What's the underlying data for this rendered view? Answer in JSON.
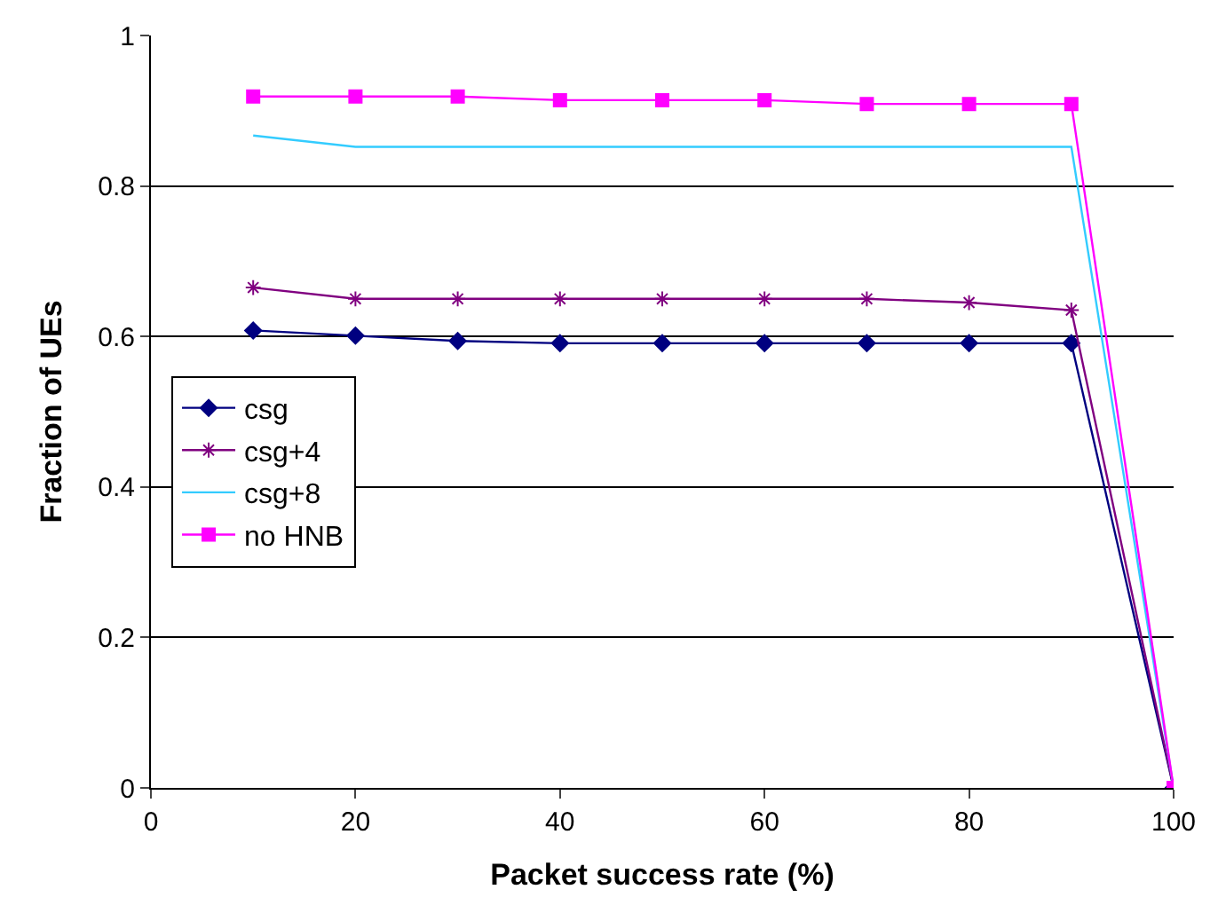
{
  "chart_data": {
    "type": "line",
    "xlabel": "Packet success rate (%)",
    "ylabel": "Fraction of UEs",
    "x": [
      10,
      20,
      30,
      40,
      50,
      60,
      70,
      80,
      90,
      100
    ],
    "series": [
      {
        "name": "csg",
        "color": "#000080",
        "marker": "diamond",
        "values": [
          0.608,
          0.601,
          0.594,
          0.591,
          0.591,
          0.591,
          0.591,
          0.591,
          0.591,
          0
        ]
      },
      {
        "name": "csg+4",
        "color": "#800080",
        "marker": "cross",
        "values": [
          0.665,
          0.65,
          0.65,
          0.65,
          0.65,
          0.65,
          0.65,
          0.645,
          0.635,
          0
        ]
      },
      {
        "name": "csg+8",
        "color": "#33ccff",
        "marker": "none",
        "values": [
          0.867,
          0.852,
          0.852,
          0.852,
          0.852,
          0.852,
          0.852,
          0.852,
          0.852,
          0
        ]
      },
      {
        "name": "no HNB",
        "color": "#ff00ff",
        "marker": "square",
        "values": [
          0.919,
          0.919,
          0.919,
          0.914,
          0.914,
          0.914,
          0.909,
          0.909,
          0.909,
          0
        ]
      }
    ],
    "xlim": [
      0,
      100
    ],
    "xticks": [
      0,
      20,
      40,
      60,
      80,
      100
    ],
    "ylim": [
      0,
      1
    ],
    "yticks": [
      0,
      0.2,
      0.4,
      0.6,
      0.8,
      1
    ],
    "grid": "y",
    "legend": "left"
  }
}
